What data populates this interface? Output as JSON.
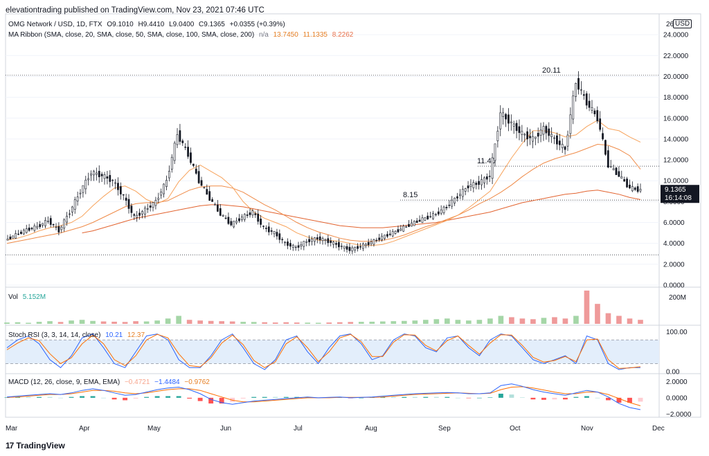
{
  "header": {
    "publisher": "elevationtrading published on TradingView.com, Nov 23, 2021 07:46 UTC"
  },
  "main_legend": {
    "symbol": "OMG Network / USD, 1D, FTX",
    "open": "O9.1010",
    "high": "H9.4410",
    "low": "L9.0400",
    "close": "C9.1365",
    "change": "+0.0355 (+0.39%)"
  },
  "ma_legend": {
    "label": "MA Ribbon (SMA, close, 20, SMA, close, 50, SMA, close, 100, SMA, close, 200)",
    "na": "n/a",
    "v20": "13.7450",
    "v50": "11.1335",
    "v100": "8.2262"
  },
  "vol_legend": {
    "label": "Vol",
    "value": "5.152M"
  },
  "stoch_legend": {
    "label": "Stoch RSI (3, 3, 14, 14, close)",
    "k": "10.21",
    "d": "12.37"
  },
  "macd_legend": {
    "label": "MACD (12, 26, close, 9, EMA, EMA)",
    "hist": "−0.4721",
    "macd": "−1.4484",
    "signal": "−0.9762"
  },
  "price_axis": {
    "unit": "USD",
    "top_partial": "26",
    "ticks": [
      "24.0000",
      "22.0000",
      "20.0000",
      "18.0000",
      "16.0000",
      "14.0000",
      "12.0000",
      "10.0000",
      "8.0000",
      "6.0000",
      "4.0000",
      "2.0000",
      "0.0000"
    ]
  },
  "last_price": {
    "value": "9.1365",
    "countdown": "16:14:08",
    "color": "#131722"
  },
  "vol_axis": {
    "tick": "200M"
  },
  "stoch_axis": {
    "ticks": [
      "100.00",
      "0.00"
    ]
  },
  "macd_axis": {
    "ticks": [
      "2.0000",
      "0.0000",
      "−2.0000"
    ]
  },
  "time_axis": {
    "labels": [
      "Mar",
      "Apr",
      "May",
      "Jun",
      "Jul",
      "Aug",
      "Sep",
      "Oct",
      "Nov",
      "Dec"
    ]
  },
  "annotations": [
    "20.11",
    "11.40",
    "8.15"
  ],
  "brand": {
    "name": "TradingView",
    "logo": "17"
  },
  "colors": {
    "sma20": "#f7a35c",
    "sma50": "#ef8a47",
    "sma100": "#e2622e",
    "sma200": "#d94b2b",
    "stoch_k": "#2962ff",
    "stoch_d": "#ff6d00",
    "macd_line": "#2962ff",
    "signal_line": "#ff6d00",
    "up": "#26a69a",
    "down": "#ef5350"
  },
  "chart_data": {
    "type": "candlestick",
    "title": "OMG Network / USD, 1D, FTX",
    "x_months": [
      "Mar",
      "Apr",
      "May",
      "Jun",
      "Jul",
      "Aug",
      "Sep",
      "Oct",
      "Nov",
      "Dec"
    ],
    "ylim": [
      0,
      26
    ],
    "y_ticks": [
      0,
      2,
      4,
      6,
      8,
      10,
      12,
      14,
      16,
      18,
      20,
      22,
      24
    ],
    "levels": [
      {
        "label": "20.11",
        "value": 20.11
      },
      {
        "label": "11.40",
        "value": 11.4
      },
      {
        "label": "8.15",
        "value": 8.15
      },
      {
        "label": "",
        "value": 2.9
      }
    ],
    "weekly_close_path": [
      4.3,
      4.8,
      5.3,
      5.6,
      6.2,
      5.2,
      7.0,
      9.0,
      10.8,
      10.5,
      10.0,
      8.5,
      6.5,
      7.2,
      8.0,
      10.0,
      14.5,
      12.5,
      10.0,
      8.3,
      6.8,
      5.8,
      6.5,
      7.0,
      5.5,
      5.0,
      4.0,
      3.6,
      4.2,
      4.5,
      4.2,
      3.8,
      3.4,
      3.7,
      4.1,
      4.6,
      5.0,
      5.5,
      6.0,
      6.4,
      6.8,
      7.5,
      8.5,
      9.5,
      9.8,
      10.5,
      16.5,
      15.5,
      14.5,
      14.0,
      15.0,
      14.0,
      13.0,
      19.5,
      17.5,
      16.0,
      11.5,
      10.5,
      9.3,
      9.1
    ],
    "sma20_path": [
      4.3,
      4.5,
      4.8,
      5.2,
      5.5,
      5.7,
      6.0,
      6.6,
      7.6,
      8.5,
      9.3,
      9.5,
      9.0,
      8.2,
      7.8,
      8.3,
      9.9,
      11.0,
      11.5,
      10.9,
      10.3,
      9.4,
      8.0,
      7.0,
      6.4,
      6.0,
      5.6,
      5.0,
      4.6,
      4.3,
      4.3,
      4.2,
      4.0,
      3.8,
      3.8,
      3.9,
      4.2,
      4.6,
      5.0,
      5.4,
      5.8,
      6.2,
      6.7,
      7.4,
      8.2,
      9.0,
      10.6,
      12.2,
      13.6,
      14.8,
      14.8,
      14.6,
      14.2,
      14.4,
      15.2,
      15.8,
      15.0,
      14.8,
      14.2,
      13.7
    ],
    "sma50_path": [
      4.0,
      4.2,
      4.4,
      4.6,
      4.8,
      5.0,
      5.3,
      5.6,
      6.0,
      6.5,
      7.0,
      7.5,
      7.8,
      7.9,
      7.9,
      8.1,
      8.6,
      9.1,
      9.4,
      9.5,
      9.5,
      9.3,
      8.9,
      8.3,
      7.7,
      7.2,
      6.6,
      6.0,
      5.5,
      5.1,
      4.8,
      4.5,
      4.3,
      4.2,
      4.2,
      4.3,
      4.5,
      4.8,
      5.2,
      5.6,
      5.9,
      6.3,
      6.7,
      7.2,
      7.8,
      8.3,
      8.9,
      9.6,
      10.4,
      11.1,
      11.7,
      12.1,
      12.4,
      12.7,
      13.1,
      13.5,
      13.4,
      13.0,
      12.4,
      11.1
    ],
    "sma100_path": [
      null,
      null,
      null,
      null,
      null,
      null,
      null,
      5.0,
      5.2,
      5.5,
      5.8,
      6.1,
      6.4,
      6.6,
      6.8,
      7.0,
      7.2,
      7.4,
      7.6,
      7.7,
      7.7,
      7.6,
      7.5,
      7.3,
      7.1,
      6.9,
      6.7,
      6.5,
      6.3,
      6.1,
      5.9,
      5.7,
      5.6,
      5.5,
      5.5,
      5.5,
      5.6,
      5.7,
      5.8,
      5.9,
      6.0,
      6.2,
      6.4,
      6.6,
      6.8,
      7.0,
      7.3,
      7.6,
      7.9,
      8.1,
      8.3,
      8.5,
      8.7,
      8.8,
      9.0,
      9.1,
      8.9,
      8.7,
      8.4,
      8.2
    ],
    "volume_path_M": [
      10,
      12,
      8,
      15,
      20,
      14,
      25,
      30,
      22,
      18,
      16,
      14,
      20,
      18,
      25,
      40,
      60,
      30,
      25,
      22,
      20,
      18,
      15,
      14,
      12,
      10,
      12,
      10,
      9,
      8,
      10,
      12,
      14,
      15,
      16,
      18,
      20,
      22,
      25,
      30,
      35,
      40,
      30,
      25,
      30,
      40,
      60,
      50,
      40,
      35,
      45,
      50,
      40,
      60,
      250,
      150,
      80,
      60,
      40,
      30
    ],
    "stoch_k_path": [
      60,
      80,
      90,
      70,
      30,
      10,
      40,
      85,
      95,
      60,
      20,
      10,
      50,
      90,
      95,
      80,
      30,
      10,
      10,
      40,
      80,
      95,
      60,
      20,
      5,
      30,
      80,
      90,
      50,
      20,
      60,
      90,
      95,
      70,
      30,
      40,
      80,
      95,
      90,
      60,
      50,
      85,
      90,
      60,
      40,
      80,
      95,
      90,
      60,
      30,
      20,
      30,
      40,
      20,
      90,
      80,
      20,
      5,
      10,
      10.21
    ],
    "stoch_d_path": [
      55,
      72,
      85,
      78,
      45,
      20,
      35,
      70,
      92,
      70,
      30,
      15,
      40,
      80,
      94,
      85,
      45,
      15,
      12,
      35,
      72,
      92,
      68,
      28,
      10,
      25,
      70,
      88,
      60,
      25,
      50,
      85,
      94,
      75,
      38,
      38,
      74,
      93,
      92,
      66,
      52,
      78,
      90,
      66,
      44,
      72,
      93,
      92,
      66,
      36,
      24,
      28,
      38,
      25,
      80,
      82,
      30,
      8,
      9,
      12.37
    ],
    "macd_path": [
      0.1,
      0.2,
      0.3,
      0.4,
      0.5,
      0.4,
      0.6,
      0.9,
      1.1,
      0.9,
      0.6,
      0.3,
      0.4,
      0.7,
      1.0,
      1.2,
      1.3,
      1.0,
      0.5,
      -0.2,
      -0.6,
      -0.8,
      -0.6,
      -0.4,
      -0.3,
      -0.2,
      -0.1,
      0.0,
      0.1,
      0.0,
      0.05,
      0.1,
      0.0,
      0.05,
      0.1,
      0.2,
      0.3,
      0.4,
      0.5,
      0.55,
      0.6,
      0.65,
      0.6,
      0.5,
      0.5,
      0.6,
      1.5,
      1.7,
      1.4,
      1.0,
      0.7,
      0.5,
      0.3,
      0.6,
      0.9,
      0.7,
      0.1,
      -0.7,
      -1.2,
      -1.4484
    ],
    "signal_path": [
      0.05,
      0.1,
      0.2,
      0.3,
      0.4,
      0.4,
      0.5,
      0.7,
      0.9,
      0.9,
      0.8,
      0.6,
      0.5,
      0.6,
      0.8,
      1.0,
      1.1,
      1.1,
      0.9,
      0.5,
      0.1,
      -0.3,
      -0.5,
      -0.5,
      -0.4,
      -0.3,
      -0.2,
      -0.1,
      0.0,
      0.0,
      0.0,
      0.05,
      0.05,
      0.05,
      0.05,
      0.1,
      0.2,
      0.3,
      0.4,
      0.45,
      0.5,
      0.55,
      0.6,
      0.55,
      0.5,
      0.55,
      1.0,
      1.3,
      1.35,
      1.2,
      0.95,
      0.7,
      0.5,
      0.5,
      0.7,
      0.7,
      0.4,
      -0.1,
      -0.6,
      -0.9762
    ]
  }
}
